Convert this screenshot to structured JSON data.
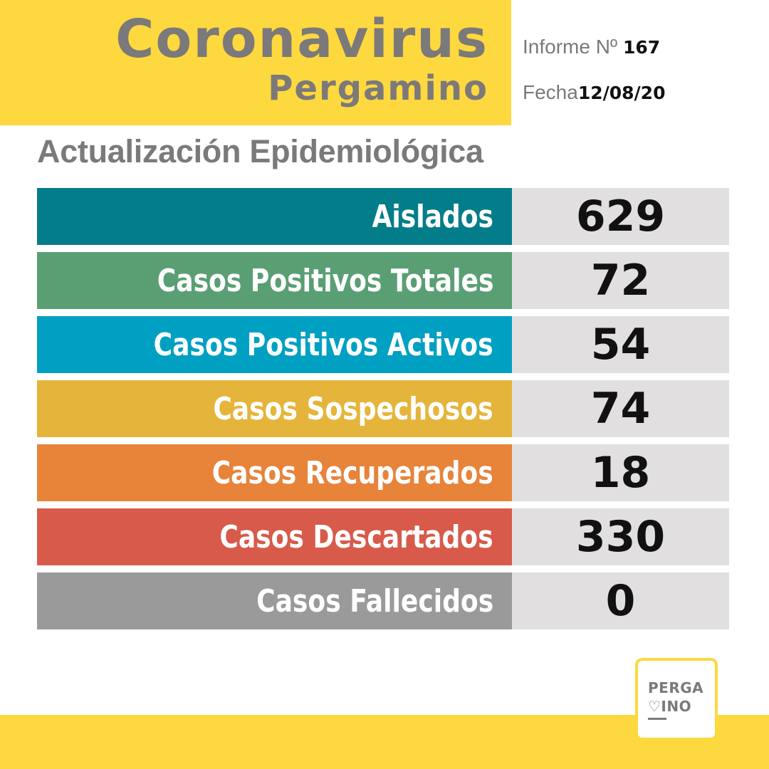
{
  "header": {
    "title": "Coronavirus",
    "subtitle": "Pergamino",
    "report_label": "Informe Nº",
    "report_number": "167",
    "date_label": "Fecha",
    "date": "12/08/20"
  },
  "subheading": "Actualización Epidemiológica",
  "stats": [
    {
      "label": "Aislados",
      "value": "629",
      "color": "#047d8a"
    },
    {
      "label": "Casos Positivos Totales",
      "value": "72",
      "color": "#5a9f74"
    },
    {
      "label": "Casos Positivos Activos",
      "value": "54",
      "color": "#00a0c3"
    },
    {
      "label": "Casos Sospechosos",
      "value": "74",
      "color": "#e5b53b"
    },
    {
      "label": "Casos Recuperados",
      "value": "18",
      "color": "#e8833a"
    },
    {
      "label": "Casos Descartados",
      "value": "330",
      "color": "#d85a4a"
    },
    {
      "label": "Casos Fallecidos",
      "value": "0",
      "color": "#9b9a9a"
    }
  ],
  "logo": {
    "line1": "PERGA",
    "line2": "♡INO"
  },
  "colors": {
    "brand_yellow": "#fdd83f",
    "text_gray": "#7b7979",
    "value_bg": "#e1dfe0"
  }
}
